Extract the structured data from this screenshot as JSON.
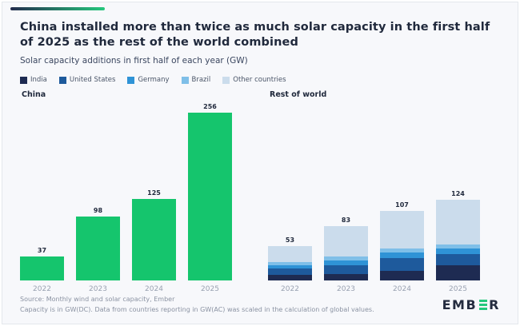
{
  "accent": {
    "gradient_from": "#222b4d",
    "gradient_to": "#25c87d"
  },
  "header": {
    "title": "China installed more than twice as much solar capacity in the first half of 2025 as the rest of the world combined",
    "subtitle": "Solar capacity additions in first half of each year (GW)"
  },
  "legend": [
    {
      "label": "India",
      "color": "#1e2b52"
    },
    {
      "label": "United States",
      "color": "#1e5a9c"
    },
    {
      "label": "Germany",
      "color": "#2f93d6"
    },
    {
      "label": "Brazil",
      "color": "#7fbfe8"
    },
    {
      "label": "Other countries",
      "color": "#cbdcec"
    }
  ],
  "chart_data": [
    {
      "type": "bar",
      "panel": "China",
      "categories": [
        "2022",
        "2023",
        "2024",
        "2025"
      ],
      "values": [
        37,
        98,
        125,
        256
      ],
      "bar_color": "#15c56d",
      "ylabel": "GW",
      "value_labels_shown": true,
      "grid": false
    },
    {
      "type": "bar",
      "panel": "Rest of world",
      "stacked": true,
      "categories": [
        "2022",
        "2023",
        "2024",
        "2025"
      ],
      "series": [
        {
          "name": "India",
          "color": "#1e2b52",
          "values": [
            9,
            10,
            15,
            23
          ]
        },
        {
          "name": "United States",
          "color": "#1e5a9c",
          "values": [
            10,
            13,
            20,
            18
          ]
        },
        {
          "name": "Germany",
          "color": "#2f93d6",
          "values": [
            5,
            8,
            8,
            8
          ]
        },
        {
          "name": "Brazil",
          "color": "#7fbfe8",
          "values": [
            4,
            6,
            6,
            6
          ]
        },
        {
          "name": "Other countries",
          "color": "#cbdcec",
          "values": [
            25,
            46,
            58,
            69
          ]
        }
      ],
      "totals": [
        53,
        83,
        107,
        124
      ],
      "ylabel": "GW",
      "value_labels_shown": true,
      "grid": false
    }
  ],
  "footer": {
    "source_line1": "Source: Monthly wind and solar capacity, Ember",
    "source_line2": "Capacity is in GW(DC). Data from countries reporting in GW(AC) was scaled in the calculation of global values.",
    "logo_text_left": "EMB",
    "logo_text_right": "R",
    "logo_e_color": "#25c87d"
  }
}
